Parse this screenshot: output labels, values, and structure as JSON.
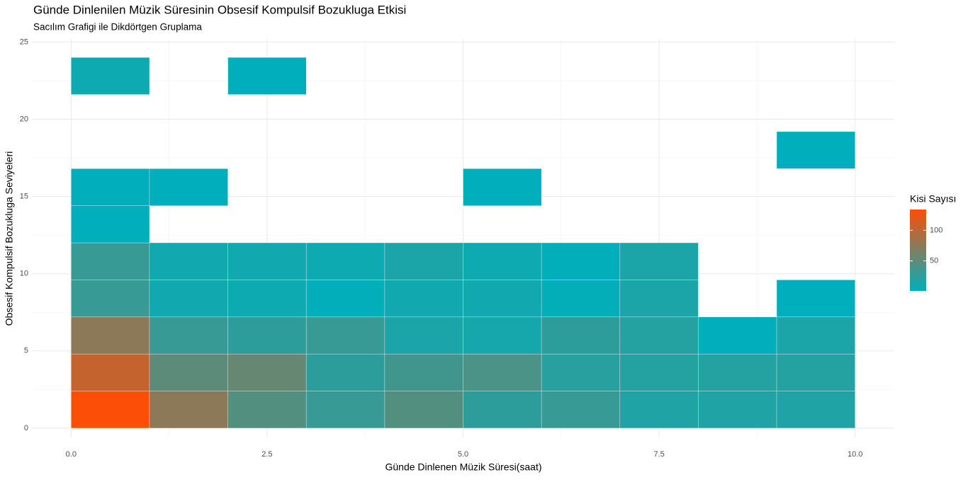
{
  "chart_data": {
    "type": "bin2d",
    "title": "Günde Dinlenilen Müzik Süresinin Obsesif Kompulsif Bozukluga Etkisi",
    "subtitle": "Sacılım Grafigi ile Dikdörtgen Gruplama",
    "x_label": "Günde Dinlenen Müzik Süresi(saat)",
    "y_label": "Obsesif Kompulsif Bozukluga Seviyeleri",
    "x_bins": [
      0,
      1,
      2,
      3,
      4,
      5,
      6,
      7,
      8,
      9,
      10
    ],
    "y_bins": [
      0,
      2.4,
      4.8,
      7.2,
      9.6,
      12,
      14.4,
      16.8,
      19.2,
      21.6,
      24
    ],
    "counts": [
      [
        134,
        75,
        45,
        30,
        45,
        25,
        30,
        18,
        18,
        18
      ],
      [
        105,
        50,
        55,
        25,
        35,
        40,
        22,
        20,
        20,
        20
      ],
      [
        75,
        30,
        25,
        30,
        15,
        12,
        25,
        20,
        1,
        15
      ],
      [
        30,
        10,
        8,
        2,
        10,
        10,
        3,
        15,
        null,
        1
      ],
      [
        30,
        10,
        10,
        8,
        15,
        8,
        2,
        15,
        null,
        null
      ],
      [
        1,
        null,
        null,
        null,
        null,
        null,
        null,
        null,
        null,
        null
      ],
      [
        1,
        1,
        null,
        null,
        null,
        1,
        null,
        null,
        null,
        null
      ],
      [
        null,
        null,
        null,
        null,
        null,
        null,
        null,
        null,
        null,
        1
      ],
      [
        null,
        null,
        null,
        null,
        null,
        null,
        null,
        null,
        null,
        null
      ],
      [
        8,
        null,
        1,
        null,
        null,
        null,
        null,
        null,
        null,
        null
      ]
    ],
    "xlim": [
      -0.5,
      10.5
    ],
    "ylim": [
      -0.6,
      25.2
    ],
    "xticks": [
      {
        "value": 0,
        "label": "0.0"
      },
      2.5,
      {
        "value": 5,
        "label": "5.0"
      },
      7.5,
      {
        "value": 10,
        "label": "10.0"
      }
    ],
    "yticks": [
      0,
      5,
      10,
      15,
      20,
      25
    ],
    "grid": true,
    "minor_grid": true,
    "legend": {
      "title": "Kisi Sayısı",
      "low_color": "#00AFBB",
      "high_color": "#FC4E07",
      "limits": [
        1,
        134
      ],
      "ticks": [
        50,
        100
      ],
      "position": "right"
    }
  }
}
